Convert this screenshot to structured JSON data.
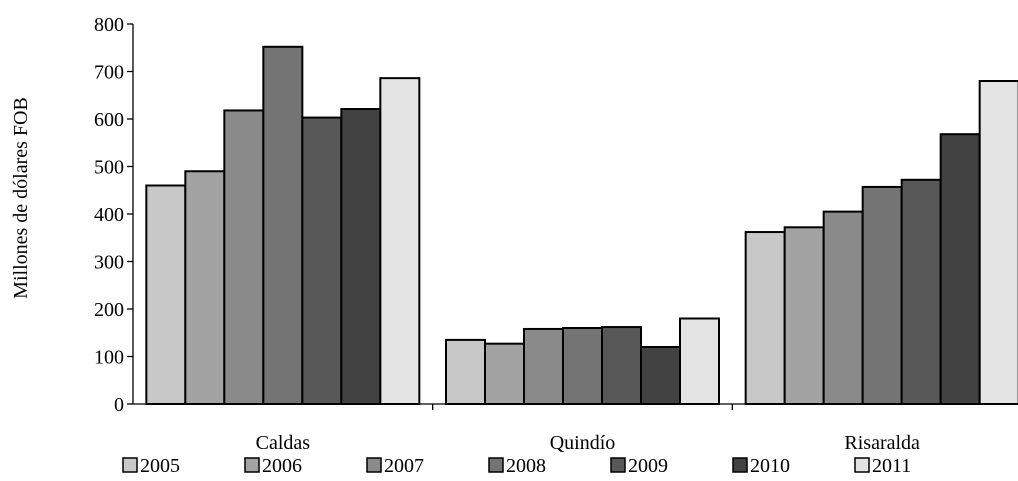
{
  "chart_data": {
    "type": "bar",
    "title": "",
    "xlabel": "",
    "ylabel": "Millones de dólares FOB",
    "ylim": [
      0,
      800
    ],
    "yticks": [
      "0",
      "100",
      "200",
      "300",
      "400",
      "500",
      "600",
      "700",
      "800"
    ],
    "categories": [
      "Caldas",
      "Quindío",
      "Risaralda"
    ],
    "series": [
      {
        "name": "2005",
        "color": "#c8c8c8",
        "values": [
          460,
          135,
          362
        ]
      },
      {
        "name": "2006",
        "color": "#a3a3a3",
        "values": [
          490,
          127,
          372
        ]
      },
      {
        "name": "2007",
        "color": "#8a8a8a",
        "values": [
          618,
          158,
          405
        ]
      },
      {
        "name": "2008",
        "color": "#747474",
        "values": [
          752,
          160,
          457
        ]
      },
      {
        "name": "2009",
        "color": "#585858",
        "values": [
          603,
          162,
          472
        ]
      },
      {
        "name": "2010",
        "color": "#424242",
        "values": [
          621,
          120,
          568
        ]
      },
      {
        "name": "2011",
        "color": "#e4e4e4",
        "values": [
          686,
          180,
          680
        ]
      }
    ],
    "grid": false,
    "legend_position": "bottom"
  }
}
